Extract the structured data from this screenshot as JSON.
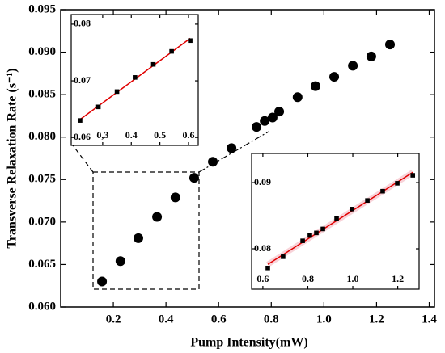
{
  "chart_data": [
    {
      "type": "scatter",
      "xlabel": "Pump Intensity(mW)",
      "ylabel": "Transverse Relaxation Rate (s⁻¹)",
      "x": [
        0.157,
        0.227,
        0.295,
        0.366,
        0.436,
        0.507,
        0.578,
        0.649,
        0.744,
        0.775,
        0.805,
        0.83,
        0.9,
        0.968,
        1.039,
        1.11,
        1.18,
        1.251
      ],
      "values": [
        0.063,
        0.0654,
        0.0681,
        0.0706,
        0.0729,
        0.0752,
        0.0771,
        0.0787,
        0.0812,
        0.0819,
        0.0823,
        0.083,
        0.0847,
        0.086,
        0.0871,
        0.0884,
        0.0895,
        0.0909
      ],
      "color": "#000000",
      "marker": "circle",
      "xlim": [
        0,
        1.42
      ],
      "ylim": [
        0.06,
        0.095
      ],
      "xticks": [
        0.2,
        0.4,
        0.6,
        0.8,
        {
          "value": 1.0,
          "label": "1.0"
        },
        1.2,
        1.4
      ],
      "yticks": [
        {
          "value": 0.06,
          "label": "0.060"
        },
        {
          "value": 0.065,
          "label": "0.065"
        },
        {
          "value": 0.07,
          "label": "0.070"
        },
        {
          "value": 0.075,
          "label": "0.075"
        },
        {
          "value": 0.08,
          "label": "0.080"
        },
        {
          "value": 0.085,
          "label": "0.085"
        },
        {
          "value": 0.09,
          "label": "0.090"
        },
        {
          "value": 0.095,
          "label": "0.095"
        }
      ]
    },
    {
      "type": "scatter",
      "x": [
        0.221,
        0.285,
        0.35,
        0.413,
        0.477,
        0.541,
        0.606
      ],
      "values": [
        0.063,
        0.0654,
        0.0681,
        0.0706,
        0.0729,
        0.0752,
        0.0771
      ],
      "color": "#000000",
      "marker": "square",
      "fit_color": "#e00000",
      "xlim": [
        0.19,
        0.634
      ],
      "ylim": [
        0.0586,
        0.0817
      ],
      "xticks": [
        {
          "value": 0.3,
          "label": "0,3"
        },
        0.4,
        0.5,
        0.6
      ],
      "yticks": [
        0.06,
        0.07,
        0.08
      ]
    },
    {
      "type": "scatter",
      "x": [
        0.622,
        0.69,
        0.777,
        0.809,
        0.838,
        0.867,
        0.928,
        0.996,
        1.065,
        1.133,
        1.198,
        1.267
      ],
      "values": [
        0.0771,
        0.0788,
        0.0812,
        0.082,
        0.0824,
        0.083,
        0.0846,
        0.086,
        0.0873,
        0.0887,
        0.0899,
        0.0911
      ],
      "color": "#000000",
      "marker": "square",
      "fit_color": "#e00000",
      "fit_band_color": "#f4b6c0",
      "xlim": [
        0.55,
        1.295
      ],
      "ylim": [
        0.0739,
        0.0944
      ],
      "xticks": [
        0.6,
        0.8,
        {
          "value": 1.0,
          "label": "1.0"
        },
        1.2
      ],
      "yticks": [
        0.08,
        0.09
      ]
    }
  ]
}
